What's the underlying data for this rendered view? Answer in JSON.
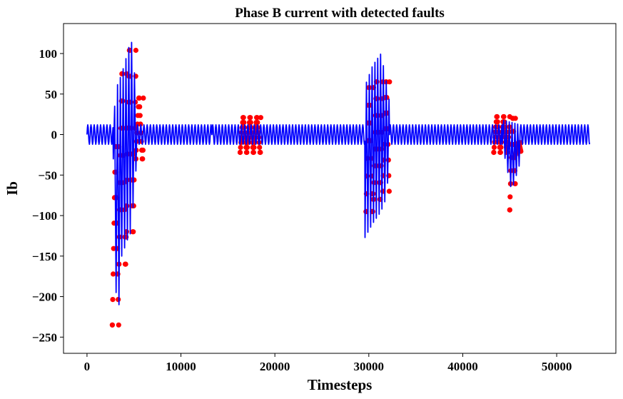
{
  "chart_data": {
    "type": "line",
    "title": "Phase B current with detected faults",
    "xlabel": "Timesteps",
    "ylabel": "Ib",
    "xlim": [
      -2500,
      56300
    ],
    "ylim": [
      -270,
      137
    ],
    "xticks": [
      0,
      10000,
      20000,
      30000,
      40000,
      50000
    ],
    "yticks": [
      -250,
      -200,
      -150,
      -100,
      -50,
      0,
      50,
      100
    ],
    "ytick_labels": [
      "−250",
      "−200",
      "−150",
      "−100",
      "−50",
      "0",
      "50",
      "100"
    ],
    "grid": false,
    "legend": "none",
    "series": [
      {
        "role": "signal",
        "color": "#0000ff",
        "segments": [
          {
            "x_start": 0,
            "x_end": 2800,
            "amplitude": 12,
            "period": 340
          },
          {
            "x_start": 2800,
            "x_end": 5300,
            "min": -250,
            "max": 120,
            "envelope": [
              [
                2800,
                -30,
                20
              ],
              [
                3200,
                -250,
                60
              ],
              [
                3700,
                -150,
                75
              ],
              [
                4300,
                -130,
                100
              ],
              [
                4700,
                -120,
                120
              ],
              [
                5100,
                -60,
                70
              ],
              [
                5300,
                -30,
                40
              ]
            ]
          },
          {
            "x_start": 5300,
            "x_end": 13300,
            "amplitude": 12,
            "period": 340
          },
          {
            "x_start": 13300,
            "x_end": 29600,
            "amplitude": 12,
            "period": 340
          },
          {
            "x_start": 29600,
            "x_end": 32200,
            "min": -127,
            "max": 100,
            "envelope": [
              [
                29600,
                -127,
                60
              ],
              [
                30400,
                -110,
                85
              ],
              [
                31300,
                -95,
                100
              ],
              [
                31800,
                -80,
                70
              ],
              [
                32200,
                -40,
                40
              ]
            ]
          },
          {
            "x_start": 32200,
            "x_end": 44200,
            "amplitude": 12,
            "period": 340
          },
          {
            "x_start": 44200,
            "x_end": 46100,
            "min": -70,
            "max": 20,
            "envelope": [
              [
                44200,
                -12,
                18
              ],
              [
                45200,
                -70,
                15
              ],
              [
                46100,
                -35,
                12
              ]
            ]
          },
          {
            "x_start": 46100,
            "x_end": 53500,
            "amplitude": 12,
            "period": 340
          }
        ]
      },
      {
        "role": "detected-faults",
        "color": "#ff0000",
        "marker": "circle",
        "regions": [
          {
            "x_start": 2700,
            "x_end": 3400,
            "min": -235,
            "max": -15
          },
          {
            "x_start": 3400,
            "x_end": 4200,
            "min": -160,
            "max": 75
          },
          {
            "x_start": 4200,
            "x_end": 5200,
            "min": -120,
            "max": 104
          },
          {
            "x_start": 5200,
            "x_end": 6000,
            "min": -30,
            "max": 45
          },
          {
            "x_start": 16300,
            "x_end": 18500,
            "min": -22,
            "max": 21
          },
          {
            "x_start": 29700,
            "x_end": 30500,
            "min": -95,
            "max": 58
          },
          {
            "x_start": 30500,
            "x_end": 31500,
            "min": -80,
            "max": 65
          },
          {
            "x_start": 31500,
            "x_end": 32200,
            "min": -70,
            "max": 65
          },
          {
            "x_start": 43300,
            "x_end": 45000,
            "min": -22,
            "max": 22
          },
          {
            "x_start": 45000,
            "x_end": 45600,
            "min": -93,
            "max": 20
          },
          {
            "x_start": 45600,
            "x_end": 46200,
            "min": -25,
            "max": -10
          }
        ]
      }
    ]
  }
}
